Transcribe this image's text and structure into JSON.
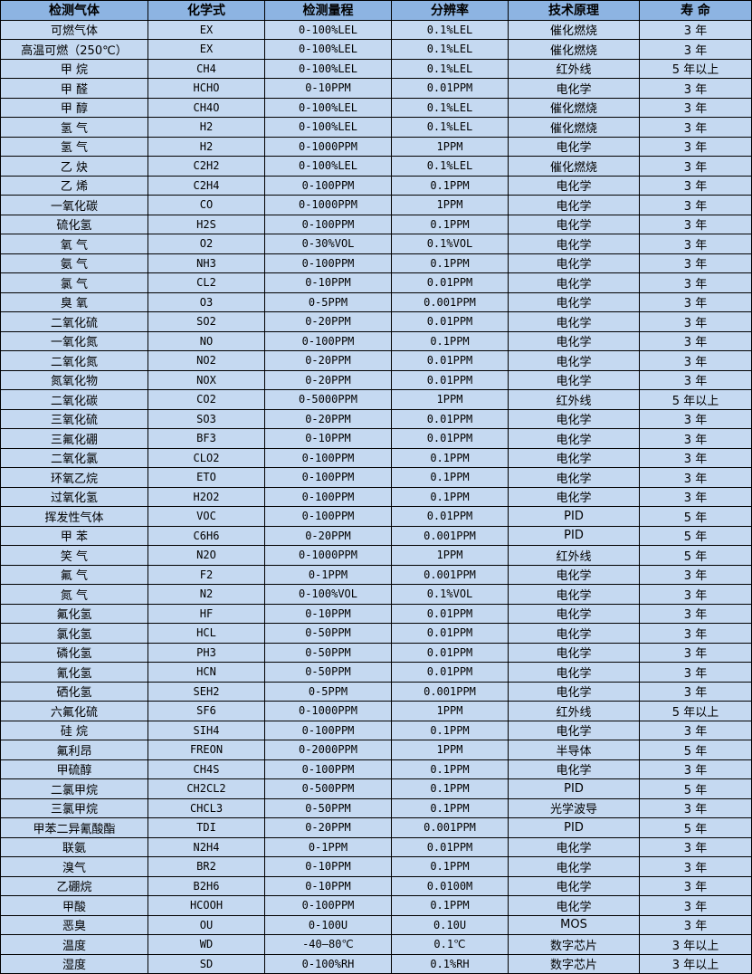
{
  "colors": {
    "header_bg": "#8db4e2",
    "cell_bg": "#c5d9f1",
    "border": "#000000"
  },
  "headers": [
    "检测气体",
    "化学式",
    "检测量程",
    "分辨率",
    "技术原理",
    "寿 命"
  ],
  "rows": [
    [
      "可燃气体",
      "EX",
      "0-100%LEL",
      "0.1%LEL",
      "催化燃烧",
      "3 年"
    ],
    [
      "高温可燃（250℃）",
      "EX",
      "0-100%LEL",
      "0.1%LEL",
      "催化燃烧",
      "3 年"
    ],
    [
      "甲 烷",
      "CH4",
      "0-100%LEL",
      "0.1%LEL",
      "红外线",
      "5 年以上"
    ],
    [
      "甲 醛",
      "HCHO",
      "0-10PPM",
      "0.01PPM",
      "电化学",
      "3 年"
    ],
    [
      "甲 醇",
      "CH4O",
      "0-100%LEL",
      "0.1%LEL",
      "催化燃烧",
      "3 年"
    ],
    [
      "氢 气",
      "H2",
      "0-100%LEL",
      "0.1%LEL",
      "催化燃烧",
      "3 年"
    ],
    [
      "氢 气",
      "H2",
      "0-1000PPM",
      "1PPM",
      "电化学",
      "3 年"
    ],
    [
      "乙 炔",
      "C2H2",
      "0-100%LEL",
      "0.1%LEL",
      "催化燃烧",
      "3 年"
    ],
    [
      "乙 烯",
      "C2H4",
      "0-100PPM",
      "0.1PPM",
      "电化学",
      "3 年"
    ],
    [
      "一氧化碳",
      "CO",
      "0-1000PPM",
      "1PPM",
      "电化学",
      "3 年"
    ],
    [
      "硫化氢",
      "H2S",
      "0-100PPM",
      "0.1PPM",
      "电化学",
      "3 年"
    ],
    [
      "氧 气",
      "O2",
      "0-30%VOL",
      "0.1%VOL",
      "电化学",
      "3 年"
    ],
    [
      "氨 气",
      "NH3",
      "0-100PPM",
      "0.1PPM",
      "电化学",
      "3 年"
    ],
    [
      "氯 气",
      "CL2",
      "0-10PPM",
      "0.01PPM",
      "电化学",
      "3 年"
    ],
    [
      "臭 氧",
      "O3",
      "0-5PPM",
      "0.001PPM",
      "电化学",
      "3 年"
    ],
    [
      "二氧化硫",
      "SO2",
      "0-20PPM",
      "0.01PPM",
      "电化学",
      "3 年"
    ],
    [
      "一氧化氮",
      "NO",
      "0-100PPM",
      "0.1PPM",
      "电化学",
      "3 年"
    ],
    [
      "二氧化氮",
      "NO2",
      "0-20PPM",
      "0.01PPM",
      "电化学",
      "3 年"
    ],
    [
      "氮氧化物",
      "NOX",
      "0-20PPM",
      "0.01PPM",
      "电化学",
      "3 年"
    ],
    [
      "二氧化碳",
      "CO2",
      "0-5000PPM",
      "1PPM",
      "红外线",
      "5 年以上"
    ],
    [
      "三氧化硫",
      "SO3",
      "0-20PPM",
      "0.01PPM",
      "电化学",
      "3 年"
    ],
    [
      "三氟化硼",
      "BF3",
      "0-10PPM",
      "0.01PPM",
      "电化学",
      "3 年"
    ],
    [
      "二氧化氯",
      "CLO2",
      "0-100PPM",
      "0.1PPM",
      "电化学",
      "3 年"
    ],
    [
      "环氧乙烷",
      "ETO",
      "0-100PPM",
      "0.1PPM",
      "电化学",
      "3 年"
    ],
    [
      "过氧化氢",
      "H2O2",
      "0-100PPM",
      "0.1PPM",
      "电化学",
      "3 年"
    ],
    [
      "挥发性气体",
      "VOC",
      "0-100PPM",
      "0.01PPM",
      "PID",
      "5 年"
    ],
    [
      "甲 苯",
      "C6H6",
      "0-20PPM",
      "0.001PPM",
      "PID",
      "5 年"
    ],
    [
      "笑 气",
      "N2O",
      "0-1000PPM",
      "1PPM",
      "红外线",
      "5 年"
    ],
    [
      "氟 气",
      "F2",
      "0-1PPM",
      "0.001PPM",
      "电化学",
      "3 年"
    ],
    [
      "氮 气",
      "N2",
      "0-100%VOL",
      "0.1%VOL",
      "电化学",
      "3 年"
    ],
    [
      "氟化氢",
      "HF",
      "0-10PPM",
      "0.01PPM",
      "电化学",
      "3 年"
    ],
    [
      "氯化氢",
      "HCL",
      "0-50PPM",
      "0.01PPM",
      "电化学",
      "3 年"
    ],
    [
      "磷化氢",
      "PH3",
      "0-50PPM",
      "0.01PPM",
      "电化学",
      "3 年"
    ],
    [
      "氰化氢",
      "HCN",
      "0-50PPM",
      "0.01PPM",
      "电化学",
      "3 年"
    ],
    [
      "硒化氢",
      "SEH2",
      "0-5PPM",
      "0.001PPM",
      "电化学",
      "3 年"
    ],
    [
      "六氟化硫",
      "SF6",
      "0-1000PPM",
      "1PPM",
      "红外线",
      "5 年以上"
    ],
    [
      "硅 烷",
      "SIH4",
      "0-100PPM",
      "0.1PPM",
      "电化学",
      "3 年"
    ],
    [
      "氟利昂",
      "FREON",
      "0-2000PPM",
      "1PPM",
      "半导体",
      "5 年"
    ],
    [
      "甲硫醇",
      "CH4S",
      "0-100PPM",
      "0.1PPM",
      "电化学",
      "3 年"
    ],
    [
      "二氯甲烷",
      "CH2CL2",
      "0-500PPM",
      "0.1PPM",
      "PID",
      "5 年"
    ],
    [
      "三氯甲烷",
      "CHCL3",
      "0-50PPM",
      "0.1PPM",
      "光学波导",
      "3 年"
    ],
    [
      "甲苯二异氰酸酯",
      "TDI",
      "0-20PPM",
      "0.001PPM",
      "PID",
      "5 年"
    ],
    [
      "联氨",
      "N2H4",
      "0-1PPM",
      "0.01PPM",
      "电化学",
      "3 年"
    ],
    [
      "溴气",
      "BR2",
      "0-10PPM",
      "0.1PPM",
      "电化学",
      "3 年"
    ],
    [
      "乙硼烷",
      "B2H6",
      "0-10PPM",
      "0.0100M",
      "电化学",
      "3 年"
    ],
    [
      "甲酸",
      "HCOOH",
      "0-100PPM",
      "0.1PPM",
      "电化学",
      "3 年"
    ],
    [
      "恶臭",
      "OU",
      "0-100U",
      "0.10U",
      "MOS",
      "3 年"
    ],
    [
      "温度",
      "WD",
      "-40—80℃",
      "0.1℃",
      "数字芯片",
      "3 年以上"
    ],
    [
      "湿度",
      "SD",
      "0-100%RH",
      "0.1%RH",
      "数字芯片",
      "3 年以上"
    ]
  ]
}
